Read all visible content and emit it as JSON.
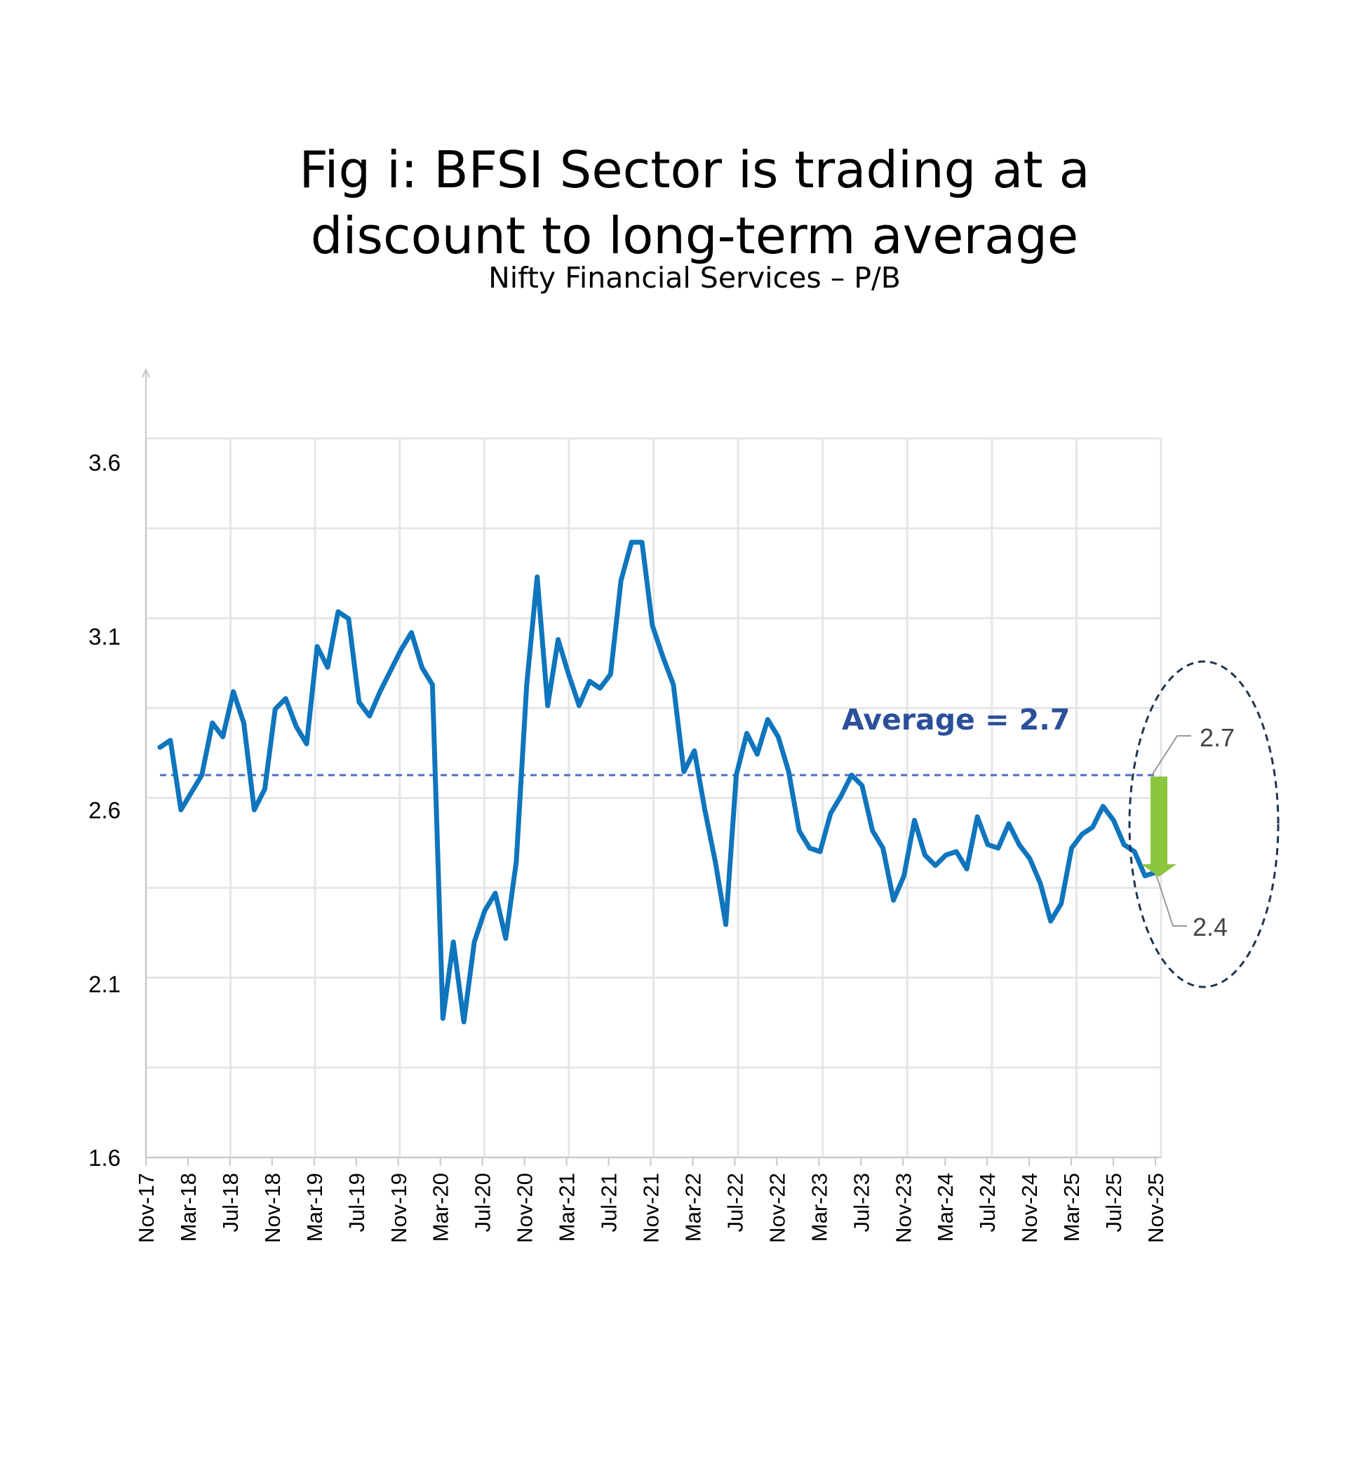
{
  "header": {
    "title_line1": "Fig i: BFSI Sector is trading at a",
    "title_line2": "discount to long-term average",
    "subtitle": "Nifty Financial Services – P/B"
  },
  "colors": {
    "line": "#0f75bd",
    "average": "#4a6ec1",
    "average_label": "#2c4f99",
    "arrow": "#8cc63f",
    "ellipse": "#1f3550",
    "grid": "#e6e6e6"
  },
  "annotations": {
    "average_label": "Average = 2.7",
    "callout_high": "2.7",
    "callout_low": "2.4"
  },
  "chart_data": {
    "type": "line",
    "title": "Fig i: BFSI Sector is trading at a discount to long-term average",
    "subtitle": "Nifty Financial Services – P/B",
    "xlabel": "",
    "ylabel": "",
    "ylim": [
      1.6,
      3.7
    ],
    "yticks": [
      "1.6",
      "2.1",
      "2.6",
      "3.1",
      "3.6"
    ],
    "xticks": [
      "Nov-17",
      "Mar-18",
      "Jul-18",
      "Nov-18",
      "Mar-19",
      "Jul-19",
      "Nov-19",
      "Mar-20",
      "Jul-20",
      "Nov-20",
      "Mar-21",
      "Jul-21",
      "Nov-21",
      "Mar-22",
      "Jul-22",
      "Nov-22",
      "Mar-23",
      "Jul-23",
      "Nov-23",
      "Mar-24",
      "Jul-24",
      "Nov-24",
      "Mar-25",
      "Jul-25",
      "Nov-25"
    ],
    "average": 2.7,
    "series": [
      {
        "name": "Nifty Financial Services P/B",
        "values": [
          2.78,
          2.8,
          2.6,
          2.65,
          2.7,
          2.85,
          2.81,
          2.94,
          2.85,
          2.6,
          2.66,
          2.89,
          2.92,
          2.84,
          2.79,
          3.07,
          3.01,
          3.17,
          3.15,
          2.91,
          2.87,
          2.94,
          3.0,
          3.06,
          3.11,
          3.01,
          2.96,
          2.0,
          2.22,
          1.99,
          2.22,
          2.31,
          2.36,
          2.23,
          2.45,
          2.96,
          3.27,
          2.9,
          3.09,
          2.99,
          2.9,
          2.97,
          2.95,
          2.99,
          3.26,
          3.37,
          3.37,
          3.13,
          3.04,
          2.96,
          2.71,
          2.77,
          2.6,
          2.45,
          2.27,
          2.7,
          2.82,
          2.76,
          2.86,
          2.81,
          2.71,
          2.54,
          2.49,
          2.48,
          2.59,
          2.64,
          2.7,
          2.67,
          2.54,
          2.49,
          2.34,
          2.41,
          2.57,
          2.47,
          2.44,
          2.47,
          2.48,
          2.43,
          2.58,
          2.5,
          2.49,
          2.56,
          2.5,
          2.46,
          2.39,
          2.28,
          2.33,
          2.49,
          2.53,
          2.55,
          2.61,
          2.57,
          2.5,
          2.48,
          2.41,
          2.42
        ]
      }
    ]
  }
}
